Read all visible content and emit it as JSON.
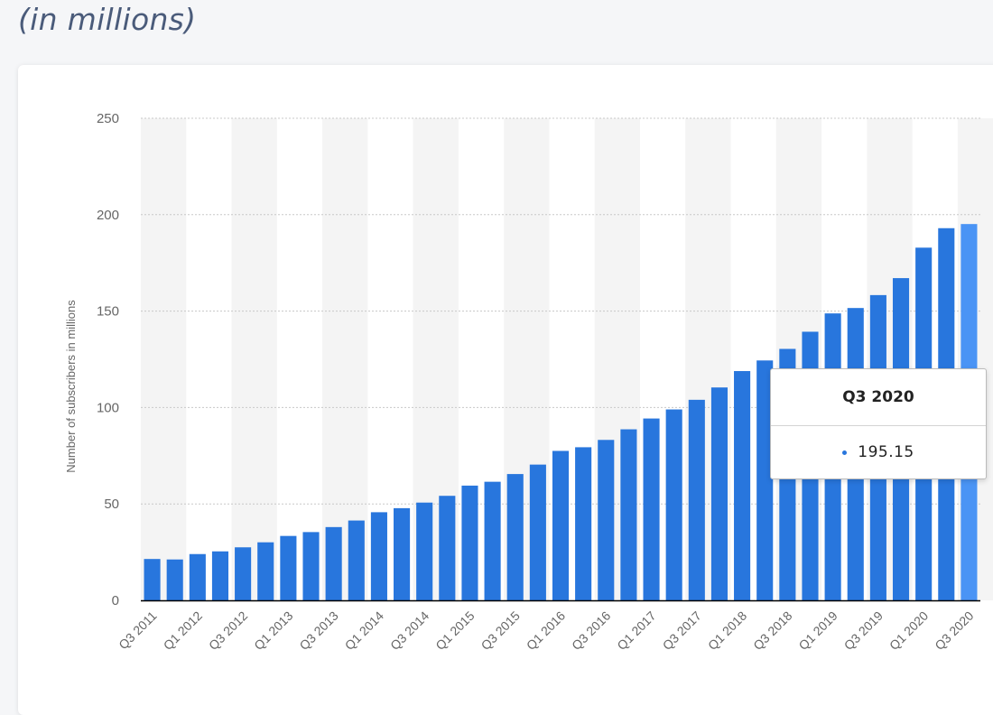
{
  "header": {
    "subtitle": "(in millions)"
  },
  "tooltip": {
    "label": "Q3 2020",
    "value": "195.15"
  },
  "colors": {
    "bar": "#2876dd",
    "bar_highlight": "#4a94f5",
    "grid": "#c8c8c8",
    "band": "#f4f4f4",
    "axis": "#000000"
  },
  "chart_data": {
    "type": "bar",
    "ylabel": "Number of subscribers in millions",
    "ylim": [
      0,
      250
    ],
    "yticks": [
      0,
      50,
      100,
      150,
      200,
      250
    ],
    "grid": true,
    "categories": [
      "Q3 2011",
      "Q4 2011",
      "Q1 2012",
      "Q2 2012",
      "Q3 2012",
      "Q4 2012",
      "Q1 2013",
      "Q2 2013",
      "Q3 2013",
      "Q4 2013",
      "Q1 2014",
      "Q2 2014",
      "Q3 2014",
      "Q4 2014",
      "Q1 2015",
      "Q2 2015",
      "Q3 2015",
      "Q4 2015",
      "Q1 2016",
      "Q2 2016",
      "Q3 2016",
      "Q4 2016",
      "Q1 2017",
      "Q2 2017",
      "Q3 2017",
      "Q4 2017",
      "Q1 2018",
      "Q2 2018",
      "Q3 2018",
      "Q4 2018",
      "Q1 2019",
      "Q2 2019",
      "Q3 2019",
      "Q4 2019",
      "Q1 2020",
      "Q2 2020",
      "Q3 2020"
    ],
    "tick_labels": [
      "Q3 2011",
      "",
      "Q1 2012",
      "",
      "Q3 2012",
      "",
      "Q1 2013",
      "",
      "Q3 2013",
      "",
      "Q1 2014",
      "",
      "Q3 2014",
      "",
      "Q1 2015",
      "",
      "Q3 2015",
      "",
      "Q1 2016",
      "",
      "Q3 2016",
      "",
      "Q1 2017",
      "",
      "Q3 2017",
      "",
      "Q1 2018",
      "",
      "Q3 2018",
      "",
      "Q1 2019",
      "",
      "Q3 2019",
      "",
      "Q1 2020",
      "",
      "Q3 2020"
    ],
    "values": [
      21.45,
      21.2,
      24,
      25.4,
      27.5,
      30.1,
      33.4,
      35.4,
      38,
      41.4,
      45.7,
      47.8,
      50.7,
      54.2,
      59.5,
      61.5,
      65.5,
      70.4,
      77.5,
      79.4,
      83.2,
      88.7,
      94.3,
      99,
      104,
      110.4,
      118.9,
      124.4,
      130.4,
      139.3,
      148.8,
      151.6,
      158.3,
      167.1,
      182.9,
      193,
      195.15
    ],
    "highlight_index": 36
  }
}
